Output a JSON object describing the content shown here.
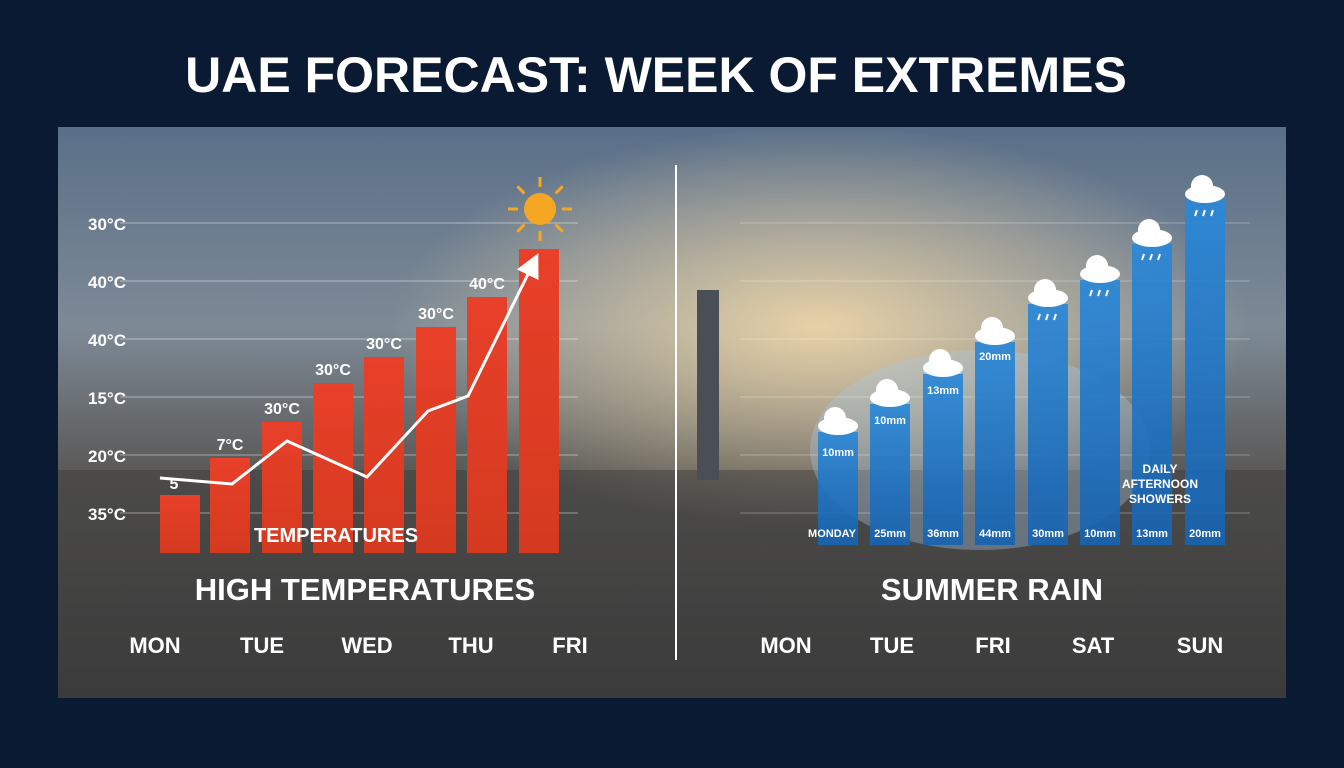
{
  "title": "UAE FORECAST: WEEK OF EXTREMES",
  "left_panel": {
    "axis_labels": [
      "30°C",
      "40°C",
      "40°C",
      "15°C",
      "20°C",
      "35°C"
    ],
    "bar_labels": [
      "5",
      "7°C",
      "30°C",
      "30°C",
      "30°C",
      "30°C",
      "40°C"
    ],
    "inner_label": "TEMPERATURES",
    "chart_label": "HIGH TEMPERATURES",
    "days": [
      "MON",
      "TUE",
      "WED",
      "THU",
      "FRI"
    ]
  },
  "right_panel": {
    "top_labels": [
      "10mm",
      "10mm",
      "13mm",
      "20mm"
    ],
    "bottom_labels": [
      "MONDAY",
      "25mm",
      "36mm",
      "44mm",
      "30mm",
      "10mm",
      "13mm",
      "20mm"
    ],
    "annotation": "DAILY AFTERNOON SHOWERS",
    "chart_label": "SUMMER RAIN",
    "days": [
      "MON",
      "TUE",
      "FRI",
      "SAT",
      "SUN"
    ]
  }
}
